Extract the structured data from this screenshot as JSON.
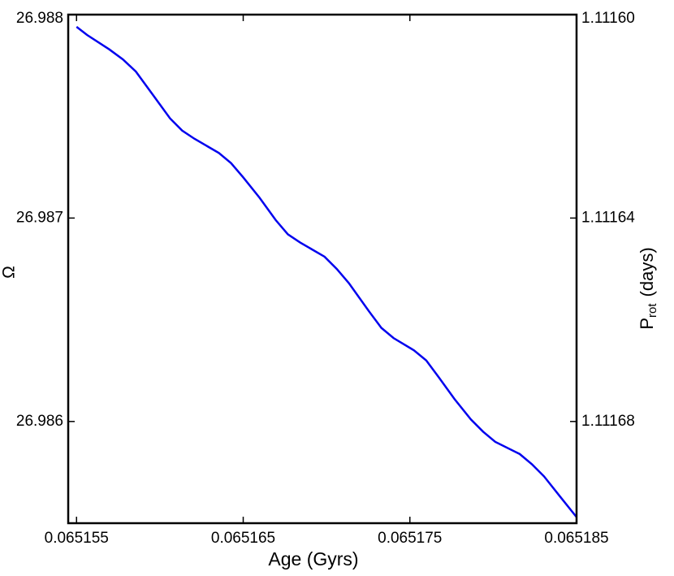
{
  "chart_data": {
    "type": "line",
    "xlabel": "Age (Gyrs)",
    "ylabel": "Ω",
    "y2label": [
      "P",
      "rot",
      "(days)"
    ],
    "x": [
      0.065155,
      0.06515563,
      0.06515695,
      0.06515778,
      0.06515856,
      0.06515963,
      0.06516061,
      0.06516134,
      0.06516207,
      0.06516354,
      0.06516427,
      0.065165,
      0.06516598,
      0.06516695,
      0.06516768,
      0.06516841,
      0.06516988,
      0.06517061,
      0.06517134,
      0.06517256,
      0.06517329,
      0.06517402,
      0.06517524,
      0.06517598,
      0.06517671,
      0.06517768,
      0.06517866,
      0.06517939,
      0.06518012,
      0.06518159,
      0.06518232,
      0.06518305,
      0.06518402,
      0.065185
    ],
    "series": [
      {
        "name": "Ω",
        "color": "#0000ee",
        "values": [
          26.98794,
          26.9879,
          26.98783,
          26.98778,
          26.98772,
          26.9876,
          26.98749,
          26.98743,
          26.98739,
          26.98732,
          26.98727,
          26.9872,
          26.9871,
          26.98699,
          26.98692,
          26.98688,
          26.98681,
          26.98675,
          26.98668,
          26.98654,
          26.98646,
          26.98641,
          26.98635,
          26.9863,
          26.98622,
          26.98611,
          26.98601,
          26.98595,
          26.9859,
          26.98584,
          26.98579,
          26.98573,
          26.98563,
          26.98553
        ]
      }
    ],
    "xlim": [
      0.0651545,
      0.065185
    ],
    "xticks": [
      0.065155,
      0.065165,
      0.065175,
      0.065185
    ],
    "ylim": [
      26.9855,
      26.988
    ],
    "yticks": [
      26.988,
      26.987,
      26.986
    ],
    "y2lim": [
      1.1116,
      1.1117
    ],
    "y2_inverted": true,
    "y2ticks": [
      {
        "value": 1.1116,
        "label": "1.11160"
      },
      1.11164,
      1.11168
    ],
    "grid": false
  }
}
